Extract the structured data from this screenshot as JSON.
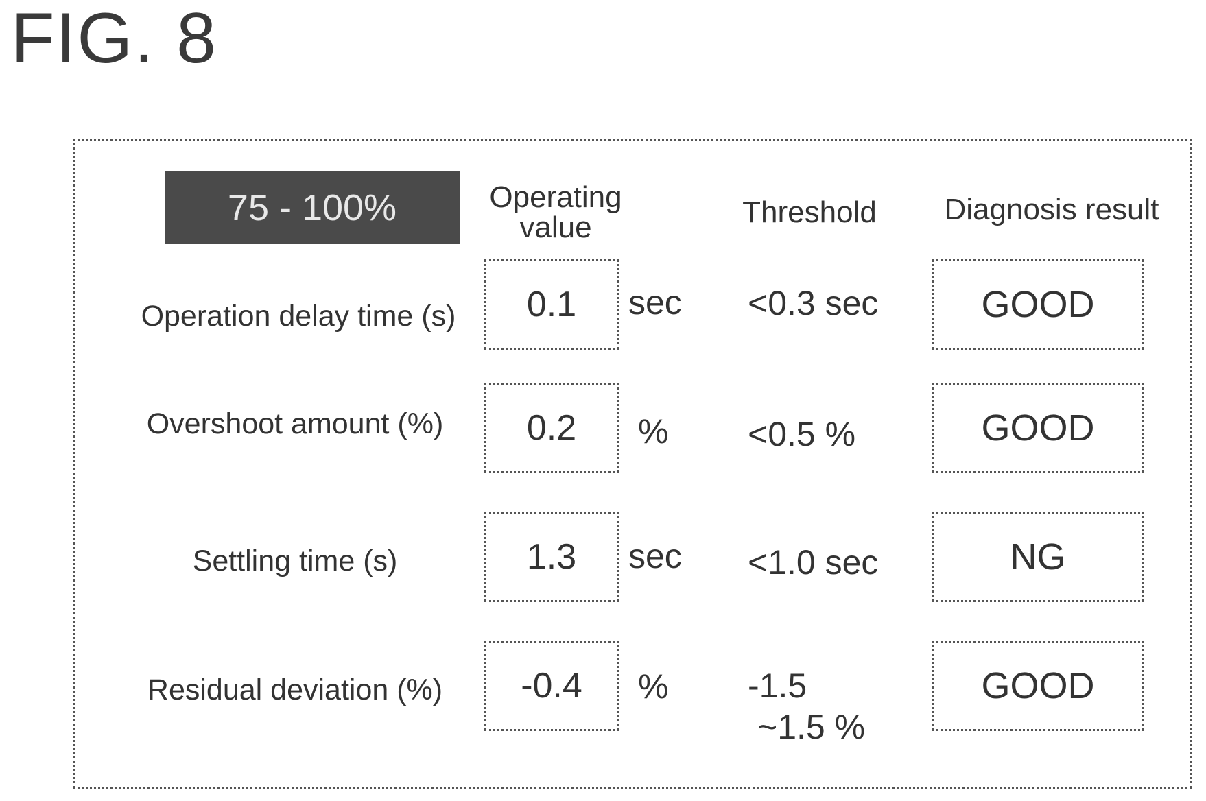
{
  "figure_label": "FIG. 8",
  "range_label": "75 - 100%",
  "headers": {
    "operating_value_line1": "Operating",
    "operating_value_line2": "value",
    "threshold": "Threshold",
    "diagnosis_result": "Diagnosis result"
  },
  "rows": [
    {
      "label": "Operation delay time (s)",
      "value": "0.1",
      "unit": "sec",
      "threshold_line1": "<0.3 sec",
      "threshold_line2": "",
      "result": "GOOD"
    },
    {
      "label": "Overshoot amount (%)",
      "value": "0.2",
      "unit": "%",
      "threshold_line1": "<0.5 %",
      "threshold_line2": "",
      "result": "GOOD"
    },
    {
      "label": "Settling time (s)",
      "value": "1.3",
      "unit": "sec",
      "threshold_line1": "<1.0 sec",
      "threshold_line2": "",
      "result": "NG"
    },
    {
      "label": "Residual deviation (%)",
      "value": "-0.4",
      "unit": "%",
      "threshold_line1": "-1.5",
      "threshold_line2": "~1.5 %",
      "result": "GOOD"
    }
  ]
}
